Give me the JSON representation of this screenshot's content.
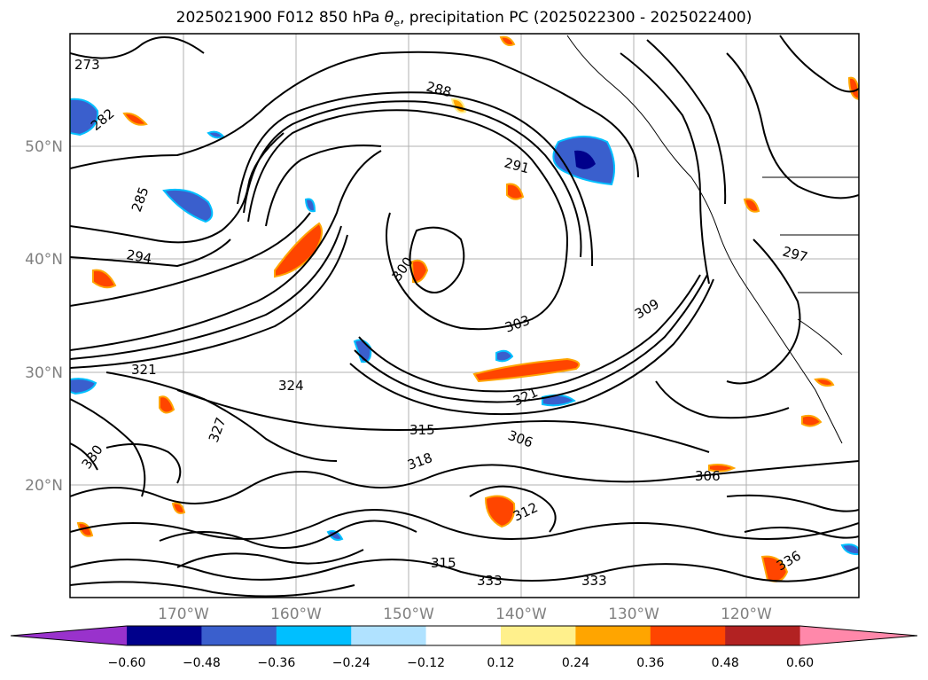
{
  "title_parts": {
    "pre": "2025021900 F012 850 hPa ",
    "theta": "θ",
    "sub": "e",
    "post": ", precipitation PC (2025022300 - 2025022400)"
  },
  "lat_labels": [
    "50°N",
    "40°N",
    "30°N",
    "20°N"
  ],
  "lon_labels": [
    "170°W",
    "160°W",
    "150°W",
    "140°W",
    "130°W",
    "120°W"
  ],
  "colorbar": {
    "colors": [
      "#9932cc",
      "#00008b",
      "#3a5fcd",
      "#00bfff",
      "#b0e2ff",
      "#ffffff",
      "#fff08c",
      "#ffa500",
      "#ff4500",
      "#b22222",
      "#ff88aa"
    ],
    "ticks": [
      "−0.60",
      "−0.48",
      "−0.36",
      "−0.24",
      "−0.12",
      "0.12",
      "0.24",
      "0.36",
      "0.48",
      "0.60"
    ]
  },
  "contour_labels": [
    "273",
    "282",
    "288",
    "291",
    "285",
    "294",
    "300",
    "303",
    "306",
    "309",
    "312",
    "315",
    "318",
    "321",
    "324",
    "327",
    "330",
    "333",
    "336",
    "297"
  ]
}
